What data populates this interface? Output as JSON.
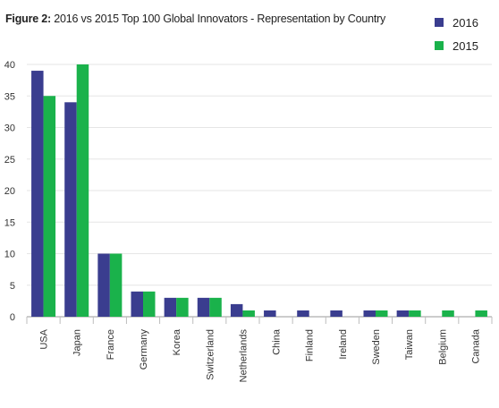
{
  "chart_data": {
    "type": "bar",
    "title_prefix": "Figure 2:",
    "title": "2016 vs 2015 Top 100 Global Innovators - Representation by Country",
    "categories": [
      "USA",
      "Japan",
      "France",
      "Germany",
      "Korea",
      "Switzerland",
      "Netherlands",
      "China",
      "Finland",
      "Ireland",
      "Sweden",
      "Taiwan",
      "Belgium",
      "Canada"
    ],
    "series": [
      {
        "name": "2016",
        "color": "#3a3d8f",
        "values": [
          39,
          34,
          10,
          4,
          3,
          3,
          2,
          1,
          1,
          1,
          1,
          1,
          0,
          0
        ]
      },
      {
        "name": "2015",
        "color": "#1ab24b",
        "values": [
          35,
          40,
          10,
          4,
          3,
          3,
          1,
          0,
          0,
          0,
          1,
          1,
          1,
          1
        ]
      }
    ],
    "xlabel": "",
    "ylabel": "",
    "ylim": [
      0,
      40
    ],
    "yticks": [
      "0",
      "5",
      "10",
      "15",
      "20",
      "25",
      "30",
      "35",
      "40"
    ],
    "grid": true,
    "legend_position": "top-right"
  }
}
